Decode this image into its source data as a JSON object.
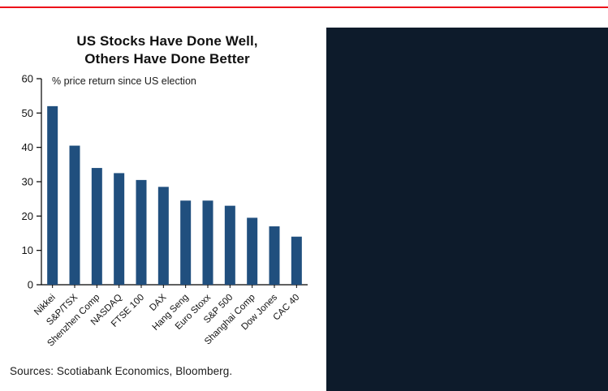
{
  "colors": {
    "accent_red": "#EC111A",
    "dark_panel": "#0d1b2b",
    "bar": "#204F7E",
    "axis": "#000000",
    "text": "#1a1a1a"
  },
  "chart_data": {
    "type": "bar",
    "title_lines": [
      "US Stocks Have Done Well,",
      "Others Have Done Better"
    ],
    "subtitle": "% price return since US election",
    "categories": [
      "Nikkei",
      "S&P/TSX",
      "Shenzhen Comp",
      "NASDAQ",
      "FTSE 100",
      "DAX",
      "Hang Seng",
      "Euro Stoxx",
      "S&P 500",
      "Shanghai Comp",
      "Dow Jones",
      "CAC 40"
    ],
    "values": [
      52,
      40.5,
      34,
      32.5,
      30.5,
      28.5,
      24.5,
      24.5,
      23,
      19.5,
      17,
      14
    ],
    "ylim": [
      0,
      60
    ],
    "ytick_step": 10,
    "yticks": [
      0,
      10,
      20,
      30,
      40,
      50,
      60
    ],
    "xlabel": "",
    "ylabel": "",
    "grid": false,
    "legend": "none"
  },
  "footer": {
    "sources": "Sources: Scotiabank Economics, Bloomberg."
  }
}
